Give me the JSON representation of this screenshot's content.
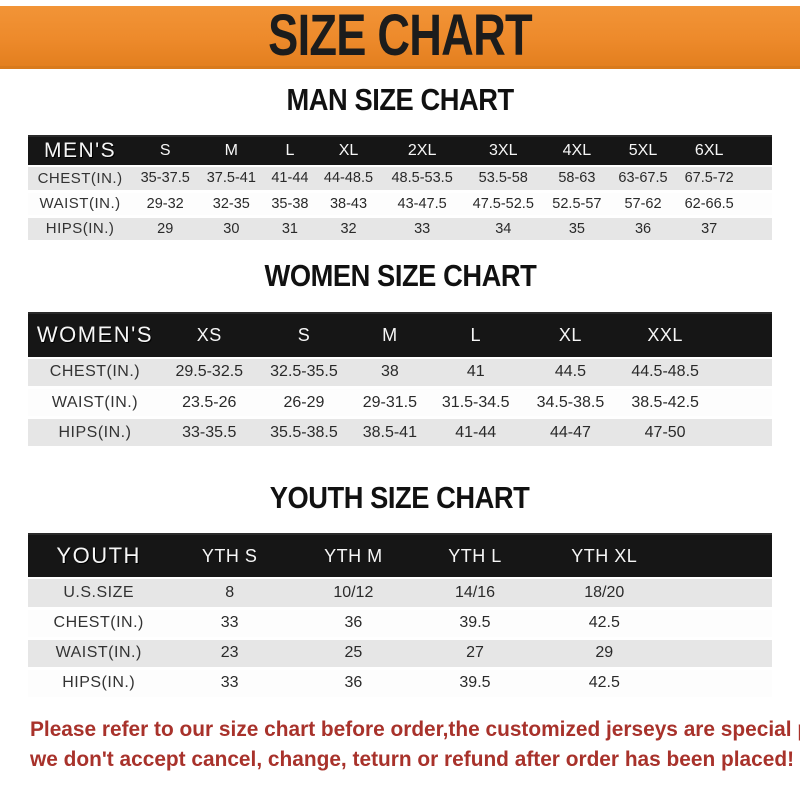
{
  "banner": {
    "title": "SIZE CHART"
  },
  "sections": {
    "men": {
      "heading": "MAN SIZE CHART",
      "table": {
        "corner_label": "MEN'S",
        "columns": [
          "S",
          "M",
          "L",
          "XL",
          "2XL",
          "3XL",
          "4XL",
          "5XL",
          "6XL"
        ],
        "rows": [
          {
            "label": "CHEST(IN.)",
            "values": [
              "35-37.5",
              "37.5-41",
              "41-44",
              "44-48.5",
              "48.5-53.5",
              "53.5-58",
              "58-63",
              "63-67.5",
              "67.5-72"
            ]
          },
          {
            "label": "WAIST(IN.)",
            "values": [
              "29-32",
              "32-35",
              "35-38",
              "38-43",
              "43-47.5",
              "47.5-52.5",
              "52.5-57",
              "57-62",
              "62-66.5"
            ]
          },
          {
            "label": "HIPS(IN.)",
            "values": [
              "29",
              "30",
              "31",
              "32",
              "33",
              "34",
              "35",
              "36",
              "37"
            ]
          }
        ]
      }
    },
    "women": {
      "heading": "WOMEN SIZE CHART",
      "table": {
        "corner_label": "WOMEN'S",
        "columns": [
          "XS",
          "S",
          "M",
          "L",
          "XL",
          "XXL"
        ],
        "rows": [
          {
            "label": "CHEST(IN.)",
            "values": [
              "29.5-32.5",
              "32.5-35.5",
              "38",
              "41",
              "44.5",
              "44.5-48.5"
            ]
          },
          {
            "label": "WAIST(IN.)",
            "values": [
              "23.5-26",
              "26-29",
              "29-31.5",
              "31.5-34.5",
              "34.5-38.5",
              "38.5-42.5"
            ]
          },
          {
            "label": "HIPS(IN.)",
            "values": [
              "33-35.5",
              "35.5-38.5",
              "38.5-41",
              "41-44",
              "44-47",
              "47-50"
            ]
          }
        ]
      }
    },
    "youth": {
      "heading": "YOUTH SIZE CHART",
      "table": {
        "corner_label": "YOUTH",
        "columns": [
          "YTH S",
          "YTH M",
          "YTH L",
          "YTH XL"
        ],
        "rows": [
          {
            "label": "U.S.SIZE",
            "values": [
              "8",
              "10/12",
              "14/16",
              "18/20"
            ]
          },
          {
            "label": "CHEST(IN.)",
            "values": [
              "33",
              "36",
              "39.5",
              "42.5"
            ]
          },
          {
            "label": "WAIST(IN.)",
            "values": [
              "23",
              "25",
              "27",
              "29"
            ]
          },
          {
            "label": "HIPS(IN.)",
            "values": [
              "33",
              "36",
              "39.5",
              "42.5"
            ]
          }
        ]
      }
    }
  },
  "footer": {
    "line1": "Please refer to our size chart before order,the customized jerseys are special products,",
    "line2": "we don't accept cancel, change, teturn or refund after order has been placed!"
  },
  "colors": {
    "banner_orange": "#ed8a2b",
    "header_black": "#161616",
    "row_gray": "#e6e6e6",
    "footer_red": "#a8322b"
  }
}
